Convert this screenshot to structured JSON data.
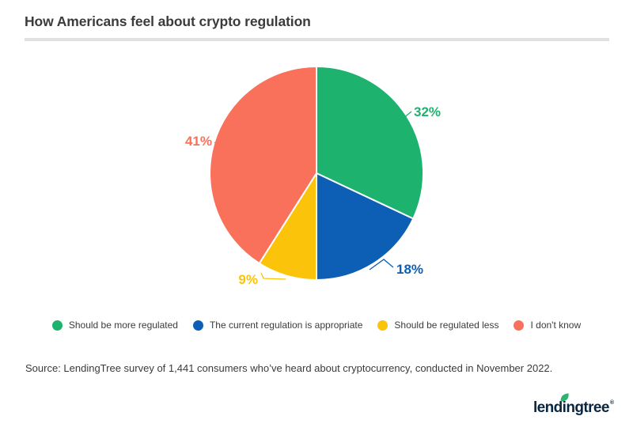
{
  "header": {
    "title": "How Americans feel about crypto regulation"
  },
  "chart_data": {
    "type": "pie",
    "title": "How Americans feel about crypto regulation",
    "categories": [
      "Should be more regulated",
      "The current regulation is appropriate",
      "Should be regulated less",
      "I don't know"
    ],
    "values": [
      32,
      18,
      9,
      41
    ],
    "unit": "%",
    "data_labels": [
      "32%",
      "18%",
      "9%",
      "41%"
    ],
    "colors": [
      "#1db36e",
      "#0d5eb5",
      "#fcc30b",
      "#f9715b"
    ],
    "start_angle_deg": 0,
    "direction": "clockwise",
    "legend_position": "bottom",
    "slice_border_color": "#ffffff"
  },
  "footer": {
    "source": "Source: LendingTree survey of 1,441 consumers who’ve heard about cryptocurrency, conducted in November 2022.",
    "logo": {
      "part1": "lend",
      "dot_letter": "i",
      "part2": "ngtree",
      "reg": "®",
      "text_color": "#0a2540",
      "leaf_color": "#2db473"
    }
  }
}
